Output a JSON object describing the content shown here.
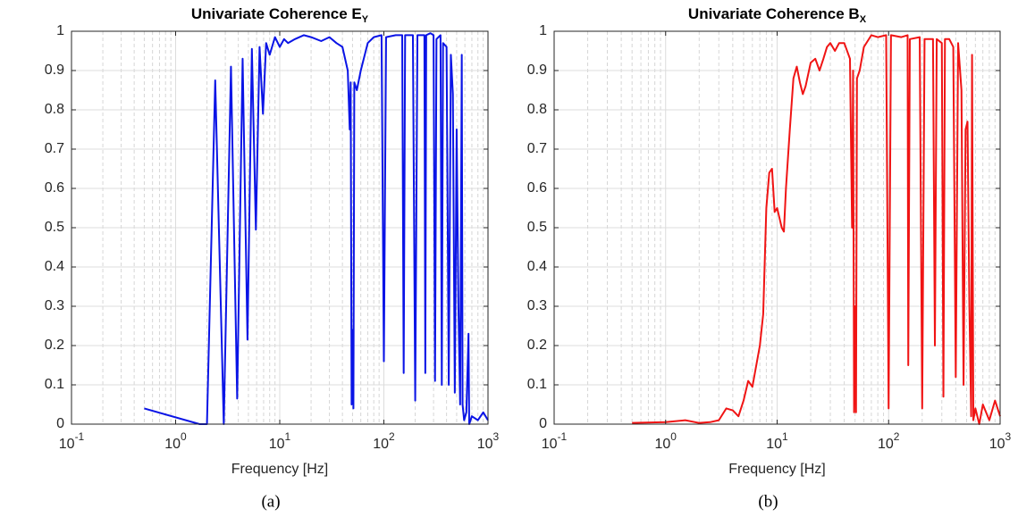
{
  "chart_data": [
    {
      "type": "line",
      "title": "Univariate Coherence E",
      "title_subscript": "Y",
      "xlabel": "Frequency [Hz]",
      "caption": "(a)",
      "xscale": "log",
      "grid": true,
      "color": "#0a14e6",
      "xlim": [
        0.1,
        1000
      ],
      "ylim": [
        0,
        1
      ],
      "xticks": [
        {
          "value": 0.1,
          "label": "10",
          "exponent": "-1"
        },
        {
          "value": 1,
          "label": "10",
          "exponent": "0"
        },
        {
          "value": 10,
          "label": "10",
          "exponent": "1"
        },
        {
          "value": 100,
          "label": "10",
          "exponent": "2"
        },
        {
          "value": 1000,
          "label": "10",
          "exponent": "3"
        }
      ],
      "xminorticks": [
        0.2,
        0.3,
        0.4,
        0.5,
        0.6,
        0.7,
        0.8,
        0.9,
        2,
        3,
        4,
        5,
        6,
        7,
        8,
        9,
        20,
        30,
        40,
        50,
        60,
        70,
        80,
        90,
        200,
        300,
        400,
        500,
        600,
        700,
        800,
        900
      ],
      "yticks": [
        0,
        0.1,
        0.2,
        0.3,
        0.4,
        0.5,
        0.6,
        0.7,
        0.8,
        0.9,
        1
      ],
      "x": [
        0.5,
        1.7,
        2,
        2.4,
        2.9,
        3.4,
        3.9,
        4.4,
        4.9,
        5.4,
        5.9,
        6.4,
        6.9,
        7.4,
        8,
        9,
        10,
        11,
        12,
        14,
        17,
        20,
        25,
        30,
        35,
        40,
        45,
        47,
        48,
        49,
        50,
        51,
        52,
        55,
        60,
        70,
        80,
        95,
        100,
        105,
        130,
        150,
        155,
        160,
        190,
        200,
        210,
        245,
        250,
        255,
        280,
        300,
        310,
        320,
        350,
        360,
        370,
        400,
        420,
        440,
        460,
        480,
        500,
        520,
        540,
        560,
        570,
        590,
        620,
        650,
        660,
        700,
        800,
        900,
        1000
      ],
      "values": [
        0.04,
        0,
        0,
        0.875,
        0,
        0.91,
        0.065,
        0.93,
        0.215,
        0.955,
        0.495,
        0.96,
        0.79,
        0.97,
        0.94,
        0.985,
        0.96,
        0.98,
        0.97,
        0.98,
        0.99,
        0.985,
        0.975,
        0.985,
        0.97,
        0.96,
        0.9,
        0.75,
        0.87,
        0.05,
        0.24,
        0.04,
        0.87,
        0.85,
        0.9,
        0.97,
        0.985,
        0.99,
        0.16,
        0.985,
        0.99,
        0.99,
        0.13,
        0.99,
        0.99,
        0.06,
        0.99,
        0.99,
        0.13,
        0.99,
        0.995,
        0.99,
        0.11,
        0.98,
        0.99,
        0.1,
        0.97,
        0.96,
        0.1,
        0.94,
        0.84,
        0.08,
        0.75,
        0.3,
        0.05,
        0.94,
        0.05,
        0.01,
        0.03,
        0.23,
        0,
        0.02,
        0.01,
        0.03,
        0.01
      ]
    },
    {
      "type": "line",
      "title": "Univariate Coherence B",
      "title_subscript": "X",
      "xlabel": "Frequency [Hz]",
      "caption": "(b)",
      "xscale": "log",
      "grid": true,
      "color": "#f01414",
      "xlim": [
        0.1,
        1000
      ],
      "ylim": [
        0,
        1
      ],
      "xticks": [
        {
          "value": 0.1,
          "label": "10",
          "exponent": "-1"
        },
        {
          "value": 1,
          "label": "10",
          "exponent": "0"
        },
        {
          "value": 10,
          "label": "10",
          "exponent": "1"
        },
        {
          "value": 100,
          "label": "10",
          "exponent": "2"
        },
        {
          "value": 1000,
          "label": "10",
          "exponent": "3"
        }
      ],
      "xminorticks": [
        0.2,
        0.3,
        0.4,
        0.5,
        0.6,
        0.7,
        0.8,
        0.9,
        2,
        3,
        4,
        5,
        6,
        7,
        8,
        9,
        20,
        30,
        40,
        50,
        60,
        70,
        80,
        90,
        200,
        300,
        400,
        500,
        600,
        700,
        800,
        900
      ],
      "yticks": [
        0,
        0.1,
        0.2,
        0.3,
        0.4,
        0.5,
        0.6,
        0.7,
        0.8,
        0.9,
        1
      ],
      "x": [
        0.5,
        1,
        1.5,
        2,
        2.5,
        3,
        3.5,
        4,
        4.5,
        5,
        5.5,
        6,
        7,
        7.5,
        8,
        8.5,
        9,
        9.5,
        10,
        11,
        11.5,
        12,
        13,
        14,
        15,
        16,
        17,
        18,
        20,
        22,
        24,
        26,
        28,
        30,
        33,
        36,
        40,
        45,
        47,
        48,
        49,
        50,
        51,
        52,
        55,
        60,
        70,
        80,
        95,
        100,
        105,
        130,
        148,
        150,
        155,
        190,
        200,
        210,
        250,
        260,
        270,
        300,
        310,
        320,
        350,
        380,
        400,
        420,
        450,
        470,
        490,
        510,
        530,
        550,
        560,
        575,
        600,
        650,
        700,
        800,
        900,
        1000
      ],
      "values": [
        0.003,
        0.005,
        0.01,
        0.003,
        0.005,
        0.01,
        0.04,
        0.035,
        0.02,
        0.06,
        0.11,
        0.095,
        0.2,
        0.28,
        0.55,
        0.64,
        0.65,
        0.54,
        0.55,
        0.5,
        0.49,
        0.6,
        0.75,
        0.88,
        0.91,
        0.87,
        0.84,
        0.86,
        0.92,
        0.93,
        0.9,
        0.93,
        0.96,
        0.97,
        0.95,
        0.97,
        0.97,
        0.93,
        0.5,
        0.9,
        0.03,
        0.3,
        0.03,
        0.88,
        0.9,
        0.96,
        0.99,
        0.985,
        0.99,
        0.04,
        0.99,
        0.985,
        0.99,
        0.15,
        0.98,
        0.985,
        0.04,
        0.98,
        0.98,
        0.2,
        0.98,
        0.97,
        0.07,
        0.98,
        0.98,
        0.96,
        0.12,
        0.97,
        0.85,
        0.1,
        0.75,
        0.77,
        0.3,
        0.02,
        0.94,
        0.01,
        0.04,
        0,
        0.05,
        0.01,
        0.06,
        0.02
      ]
    }
  ]
}
